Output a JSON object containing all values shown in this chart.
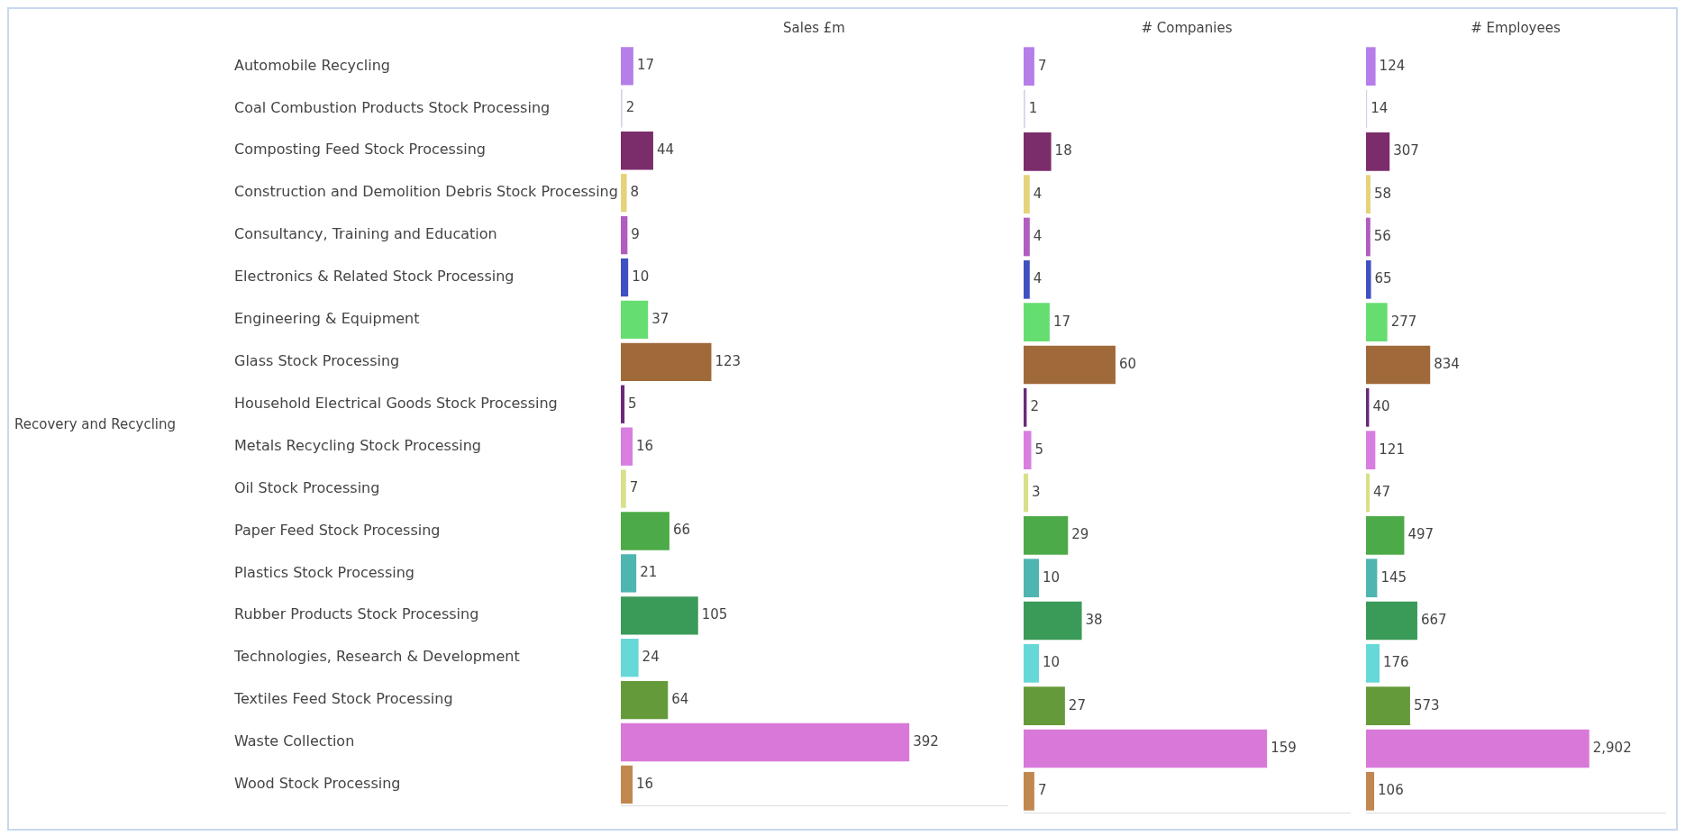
{
  "chart_data": [
    {
      "type": "bar",
      "orientation": "horizontal",
      "title": "Sales £m",
      "tick_labels": "y",
      "data_labels": true,
      "annotations": [
        "Recovery and Recycling"
      ],
      "categories": [
        "Automobile Recycling",
        "Coal Combustion Products Stock Processing",
        "Composting Feed Stock Processing",
        "Construction and Demolition Debris Stock Processing",
        "Consultancy, Training and Education",
        "Electronics & Related Stock Processing",
        "Engineering & Equipment",
        "Glass Stock Processing",
        "Household Electrical Goods Stock Processing",
        "Metals Recycling Stock Processing",
        "Oil Stock Processing",
        "Paper Feed Stock Processing",
        "Plastics Stock Processing",
        "Rubber Products Stock Processing",
        "Technologies, Research & Development",
        "Textiles Feed Stock Processing",
        "Waste Collection",
        "Wood Stock Processing"
      ],
      "values": [
        17,
        2,
        44,
        8,
        9,
        10,
        37,
        123,
        5,
        16,
        7,
        66,
        21,
        105,
        24,
        64,
        392,
        16
      ],
      "colors": [
        "#b57ee8",
        "#d8d0e4",
        "#7b2d6b",
        "#e6d27a",
        "#b05cc0",
        "#4050c0",
        "#66dd70",
        "#a0693a",
        "#6a2a7a",
        "#d77ee0",
        "#d8e08a",
        "#4caa48",
        "#4fb5b0",
        "#3a9a58",
        "#66d8d8",
        "#659a3a",
        "#d878d8",
        "#c08850"
      ]
    },
    {
      "type": "bar",
      "orientation": "horizontal",
      "title": "# Companies",
      "tick_labels": false,
      "data_labels": true,
      "categories": [
        null,
        null,
        null,
        null,
        null,
        null,
        null,
        null,
        null,
        null,
        null,
        null,
        null,
        null,
        null,
        null,
        null,
        null
      ],
      "values": [
        7,
        1,
        18,
        4,
        4,
        4,
        17,
        60,
        2,
        5,
        3,
        29,
        10,
        38,
        10,
        27,
        159,
        7
      ],
      "colors": [
        "#b57ee8",
        "#d8d0e4",
        "#7b2d6b",
        "#e6d27a",
        "#b05cc0",
        "#4050c0",
        "#66dd70",
        "#a0693a",
        "#6a2a7a",
        "#d77ee0",
        "#d8e08a",
        "#4caa48",
        "#4fb5b0",
        "#3a9a58",
        "#66d8d8",
        "#659a3a",
        "#d878d8",
        "#c08850"
      ]
    },
    {
      "type": "bar",
      "orientation": "horizontal",
      "title": "# Employees",
      "tick_labels": false,
      "categories": [
        null,
        null,
        null,
        null,
        null,
        null,
        null,
        null,
        null,
        null,
        null,
        null,
        null,
        null,
        null,
        null,
        null,
        null
      ],
      "values": [
        124,
        14,
        307,
        58,
        56,
        65,
        277,
        834,
        40,
        121,
        47,
        497,
        145,
        667,
        176,
        573,
        2902,
        106
      ],
      "value_labels": [
        "124",
        "14",
        "307",
        "58",
        "56",
        "65",
        "277",
        "834",
        "40",
        "121",
        "47",
        "497",
        "145",
        "667",
        "176",
        "573",
        "2,902",
        "106"
      ],
      "colors": [
        "#b57ee8",
        "#d8d0e4",
        "#7b2d6b",
        "#e6d27a",
        "#b05cc0",
        "#4050c0",
        "#66dd70",
        "#a0693a",
        "#6a2a7a",
        "#d77ee0",
        "#d8e08a",
        "#4caa48",
        "#4fb5b0",
        "#3a9a58",
        "#66d8d8",
        "#659a3a",
        "#d878d8",
        "#c08850"
      ]
    }
  ]
}
